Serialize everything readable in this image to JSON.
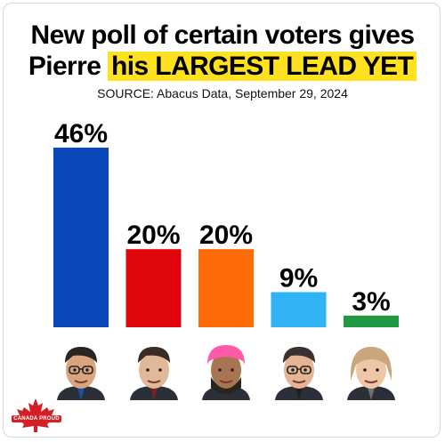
{
  "title_line1": "New poll of certain voters gives",
  "title_line2_prefix": "Pierre ",
  "title_line2_highlight": "his LARGEST LEAD YET",
  "source": "SOURCE: Abacus Data, September 29, 2024",
  "logo_text": "CANADA PROUD",
  "chart_data": {
    "type": "bar",
    "categories": [
      "",
      "",
      "",
      "",
      ""
    ],
    "values": [
      46,
      20,
      20,
      9,
      3
    ],
    "labels": [
      "46%",
      "20%",
      "20%",
      "9%",
      "3%"
    ],
    "colors": [
      "#0a47b8",
      "#e0060c",
      "#ff6b06",
      "#2fb3f5",
      "#1f9a43"
    ],
    "ylim": [
      0,
      46
    ],
    "grid": false,
    "legend": "none"
  },
  "faces": [
    {
      "icon": "pierre-poilievre-face-icon",
      "skin": "#d9a57f",
      "hair": "#2a2522",
      "tie": "#1b4fa8"
    },
    {
      "icon": "justin-trudeau-face-icon",
      "skin": "#e2b89a",
      "hair": "#3a2c24",
      "tie": "#7a2020"
    },
    {
      "icon": "jagmeet-singh-face-icon",
      "skin": "#a87552",
      "hair": "#ff5aa8",
      "tie": "#333"
    },
    {
      "icon": "yves-francois-blanchet-face-icon",
      "skin": "#e4b493",
      "hair": "#3b3130",
      "tie": "#222"
    },
    {
      "icon": "elizabeth-may-face-icon",
      "skin": "#efc7a8",
      "hair": "#c9a77a",
      "tie": "#6f6f6f"
    }
  ]
}
